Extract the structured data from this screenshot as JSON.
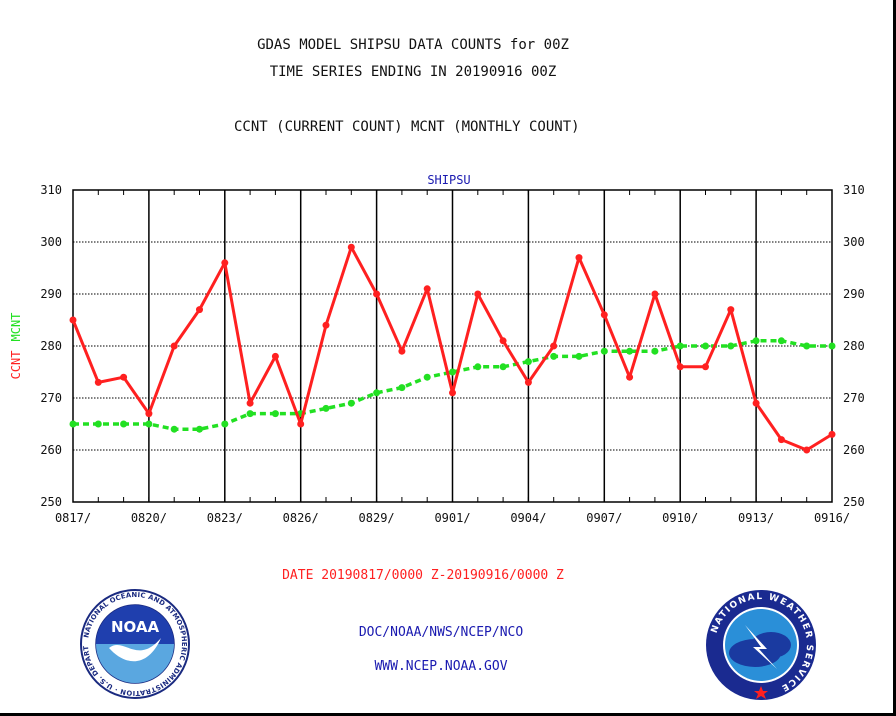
{
  "header": {
    "title_line1": "GDAS MODEL SHIPSU DATA COUNTS for 00Z",
    "title_line2": "TIME SERIES ENDING IN 20190916 00Z",
    "subtitle": "CCNT (CURRENT COUNT) MCNT (MONTHLY COUNT)"
  },
  "footer": {
    "source": "DOC/NOAA/NWS/NCEP/NCO",
    "website": "WWW.NCEP.NOAA.GOV"
  },
  "logos": {
    "noaa": {
      "center_text": "NOAA",
      "ring_text": "NATIONAL OCEANIC AND ATMOSPHERIC ADMINISTRATION · U.S. DEPARTMENT OF COMMERCE"
    },
    "nws": {
      "ring_text": "NATIONAL WEATHER SERVICE"
    }
  },
  "colors": {
    "ccnt": "#ff2020",
    "mcnt": "#22e022",
    "plot_title": "#1a1ab0",
    "date_range": "#ff2020",
    "grid": "#000000"
  },
  "chart_data": {
    "type": "line",
    "title": "SHIPSU",
    "ylabel_parts": [
      {
        "text": "CCNT",
        "series": "CCNT"
      },
      {
        "text": "MCNT",
        "series": "MCNT"
      }
    ],
    "xlabel": "DATE 20190817/0000 Z-20190916/0000 Z",
    "ylim": [
      250,
      310
    ],
    "yticks": [
      250,
      260,
      270,
      280,
      290,
      300,
      310
    ],
    "xlim": [
      0,
      30
    ],
    "xticks": [
      {
        "x": 0,
        "label": "0817/"
      },
      {
        "x": 3,
        "label": "0820/"
      },
      {
        "x": 6,
        "label": "0823/"
      },
      {
        "x": 9,
        "label": "0826/"
      },
      {
        "x": 12,
        "label": "0829/"
      },
      {
        "x": 15,
        "label": "0901/"
      },
      {
        "x": 18,
        "label": "0904/"
      },
      {
        "x": 21,
        "label": "0907/"
      },
      {
        "x": 24,
        "label": "0910/"
      },
      {
        "x": 27,
        "label": "0913/"
      },
      {
        "x": 30,
        "label": "0916/"
      }
    ],
    "grid": true,
    "right_axis": true,
    "series": [
      {
        "name": "CCNT",
        "color": "#ff2020",
        "style": "solid",
        "values": [
          285,
          273,
          274,
          267,
          280,
          287,
          296,
          269,
          278,
          265,
          284,
          299,
          290,
          279,
          291,
          271,
          290,
          281,
          273,
          280,
          297,
          286,
          274,
          290,
          276,
          276,
          287,
          269,
          262,
          260,
          263
        ]
      },
      {
        "name": "MCNT",
        "color": "#22e022",
        "style": "dashed",
        "values": [
          265,
          265,
          265,
          265,
          264,
          264,
          265,
          267,
          267,
          267,
          268,
          269,
          271,
          272,
          274,
          275,
          276,
          276,
          277,
          278,
          278,
          279,
          279,
          279,
          280,
          280,
          280,
          281,
          281,
          280,
          280
        ]
      }
    ]
  }
}
